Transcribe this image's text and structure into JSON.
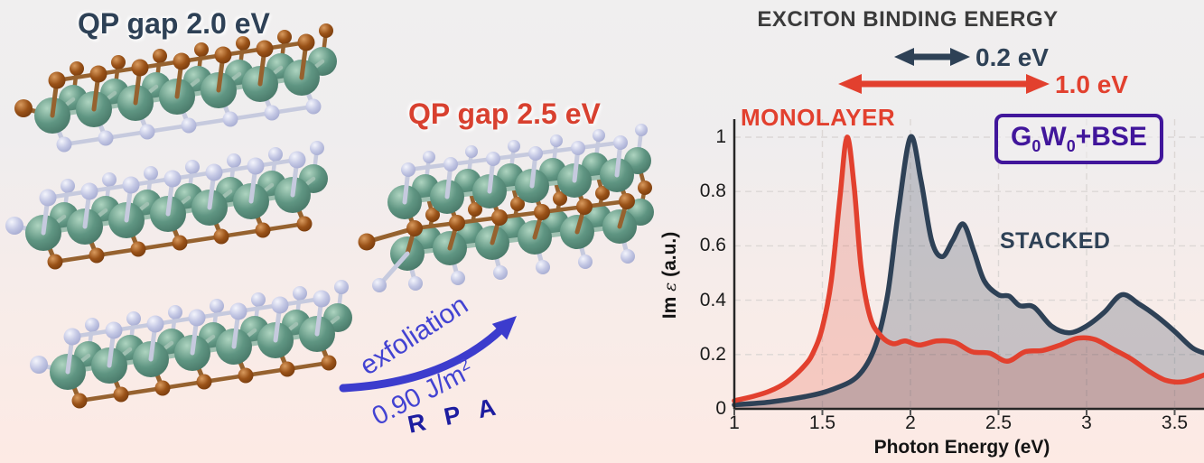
{
  "left_panel": {
    "qp_gap_label": "QP gap 2.0 eV"
  },
  "middle_panel": {
    "qp_gap_label": "QP gap 2.5 eV",
    "exfoliation_label": "exfoliation",
    "energy_value": "0.90 J/m",
    "energy_sup": "2",
    "rpa_label": "R P A"
  },
  "right_panel": {
    "title": "EXCITON BINDING ENERGY",
    "binding_small_label": "0.2 eV",
    "binding_large_label": "1.0 eV",
    "monolayer_label": "MONOLAYER",
    "stacked_label": "STACKED",
    "method": {
      "g": "G",
      "g_sub": "0",
      "w": "W",
      "w_sub": "0",
      "rest": "+BSE"
    },
    "xlabel": "Photon Energy (eV)",
    "ylabel_im": "Im",
    "ylabel_eps": "ε",
    "ylabel_units": "(a.u.)"
  },
  "colors": {
    "navy": "#2e4156",
    "red": "#e2402e",
    "arrow_blue": "#3c3ccd",
    "text_blue": "#4343d2",
    "rpa_blue": "#1d1da0",
    "method_purple": "#41169b",
    "title_gray": "#3b3b3b",
    "teal_atom": "#5f9582",
    "brown_atom": "#9a5218",
    "lavender_atom": "#c3c7e4"
  },
  "chart_data": {
    "type": "line",
    "title": "",
    "xlabel": "Photon Energy (eV)",
    "ylabel": "Im ε (a.u.)",
    "xlim": [
      1,
      3.67
    ],
    "ylim": [
      0,
      1.07
    ],
    "grid": true,
    "legend_position": "inline-labels",
    "x_ticks": [
      "1",
      "1.5",
      "2",
      "2.5",
      "3",
      "3.5"
    ],
    "y_ticks": [
      "0",
      "0.2",
      "0.4",
      "0.6",
      "0.8",
      "1"
    ],
    "series": [
      {
        "name": "MONOLAYER",
        "color": "#e2402e",
        "fill": "rgba(226,64,46,0.20)",
        "points": [
          [
            1.0,
            0.03
          ],
          [
            1.1,
            0.045
          ],
          [
            1.2,
            0.065
          ],
          [
            1.3,
            0.1
          ],
          [
            1.4,
            0.16
          ],
          [
            1.45,
            0.21
          ],
          [
            1.5,
            0.3
          ],
          [
            1.55,
            0.47
          ],
          [
            1.6,
            0.78
          ],
          [
            1.64,
            1.0
          ],
          [
            1.68,
            0.82
          ],
          [
            1.72,
            0.52
          ],
          [
            1.77,
            0.34
          ],
          [
            1.83,
            0.27
          ],
          [
            1.9,
            0.24
          ],
          [
            1.97,
            0.25
          ],
          [
            2.05,
            0.235
          ],
          [
            2.15,
            0.25
          ],
          [
            2.25,
            0.245
          ],
          [
            2.35,
            0.21
          ],
          [
            2.45,
            0.205
          ],
          [
            2.55,
            0.175
          ],
          [
            2.65,
            0.21
          ],
          [
            2.75,
            0.215
          ],
          [
            2.85,
            0.235
          ],
          [
            2.95,
            0.26
          ],
          [
            3.05,
            0.255
          ],
          [
            3.15,
            0.22
          ],
          [
            3.25,
            0.185
          ],
          [
            3.35,
            0.14
          ],
          [
            3.45,
            0.105
          ],
          [
            3.55,
            0.1
          ],
          [
            3.67,
            0.125
          ]
        ]
      },
      {
        "name": "STACKED",
        "color": "#2e4156",
        "fill": "rgba(46,65,86,0.25)",
        "points": [
          [
            1.0,
            0.015
          ],
          [
            1.2,
            0.025
          ],
          [
            1.4,
            0.045
          ],
          [
            1.55,
            0.07
          ],
          [
            1.7,
            0.12
          ],
          [
            1.8,
            0.23
          ],
          [
            1.87,
            0.42
          ],
          [
            1.93,
            0.72
          ],
          [
            2.0,
            1.0
          ],
          [
            2.06,
            0.84
          ],
          [
            2.12,
            0.62
          ],
          [
            2.18,
            0.56
          ],
          [
            2.24,
            0.62
          ],
          [
            2.3,
            0.68
          ],
          [
            2.36,
            0.58
          ],
          [
            2.42,
            0.47
          ],
          [
            2.5,
            0.42
          ],
          [
            2.56,
            0.415
          ],
          [
            2.62,
            0.38
          ],
          [
            2.7,
            0.375
          ],
          [
            2.8,
            0.305
          ],
          [
            2.9,
            0.28
          ],
          [
            3.0,
            0.305
          ],
          [
            3.1,
            0.355
          ],
          [
            3.2,
            0.42
          ],
          [
            3.3,
            0.385
          ],
          [
            3.4,
            0.34
          ],
          [
            3.5,
            0.285
          ],
          [
            3.6,
            0.225
          ],
          [
            3.67,
            0.205
          ]
        ]
      }
    ]
  }
}
